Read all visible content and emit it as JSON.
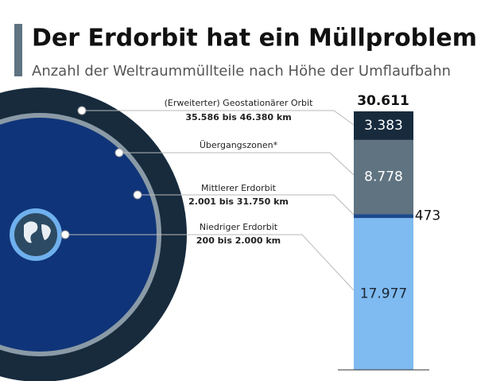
{
  "chart_data": {
    "type": "stacked_bar",
    "title": "Der Erdorbit hat ein Müllproblem",
    "subtitle": "Anzahl der Weltraummüllteile nach Höhe der Umflaufbahn",
    "ylim": [
      0,
      30611
    ],
    "total": {
      "value": 30611,
      "label": "30.611"
    },
    "series": [
      {
        "name": "Niedriger Erdorbit",
        "range": "200 bis 2.000 km",
        "color": "#7fbaf0",
        "values": [
          17977
        ],
        "value_labels": [
          "17.977"
        ]
      },
      {
        "name": "Mittlerer Erdorbit",
        "range": "2.001 bis 31.750 km",
        "color": "#1c4a8c",
        "values": [
          473
        ],
        "value_labels": [
          "473"
        ]
      },
      {
        "name": "Übergangszonen*",
        "color": "#5f7381",
        "values": [
          8778
        ],
        "value_labels": [
          "8.778"
        ]
      },
      {
        "name": "(Erweiterter) Geostationärer Orbit",
        "range": "35.586 bis 46.380 km",
        "color": "#172b3d",
        "values": [
          3383
        ],
        "value_labels": [
          "3.383"
        ]
      }
    ]
  }
}
